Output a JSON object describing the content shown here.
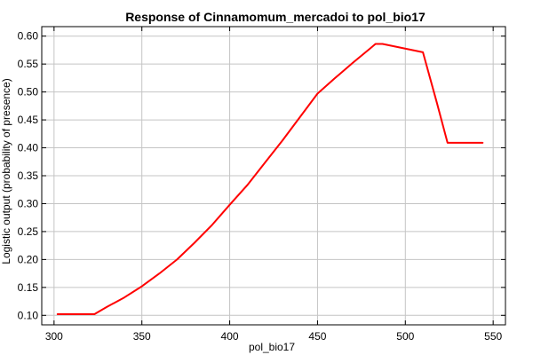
{
  "chart_data": {
    "type": "line",
    "title": "Response of Cinnamomum_mercadoi to pol_bio17",
    "xlabel": "pol_bio17",
    "ylabel": "Logistic output (probability of presence)",
    "xlim": [
      293,
      557
    ],
    "ylim": [
      0.083,
      0.617
    ],
    "grid": true,
    "x_ticks": [
      300,
      350,
      400,
      450,
      500,
      550
    ],
    "x_tick_labels": [
      "300",
      "350",
      "400",
      "450",
      "500",
      "550"
    ],
    "y_ticks": [
      0.1,
      0.15,
      0.2,
      0.25,
      0.3,
      0.35,
      0.4,
      0.45,
      0.5,
      0.55,
      0.6
    ],
    "y_tick_labels": [
      "0.10",
      "0.15",
      "0.20",
      "0.25",
      "0.30",
      "0.35",
      "0.40",
      "0.45",
      "0.50",
      "0.55",
      "0.60"
    ],
    "series": [
      {
        "color": "#ff0000",
        "x": [
          302,
          323,
          330,
          340,
          350,
          360,
          370,
          380,
          390,
          400,
          410,
          420,
          430,
          440,
          450,
          460,
          470,
          480,
          483,
          487,
          510,
          518,
          524,
          544
        ],
        "y": [
          0.102,
          0.102,
          0.115,
          0.132,
          0.152,
          0.175,
          0.2,
          0.23,
          0.262,
          0.298,
          0.333,
          0.373,
          0.413,
          0.455,
          0.497,
          0.525,
          0.552,
          0.578,
          0.586,
          0.586,
          0.571,
          0.48,
          0.409,
          0.409
        ]
      }
    ]
  }
}
